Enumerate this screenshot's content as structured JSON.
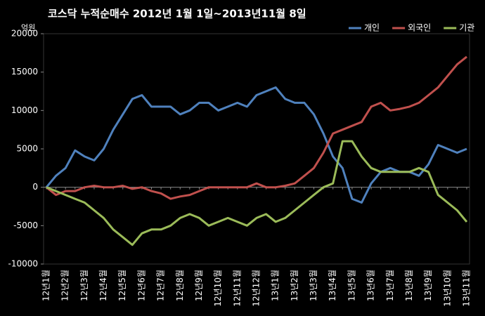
{
  "chart_data": {
    "type": "line",
    "title": "코스닥 누적순매수 2012년 1월 1일~2013년11월 8일",
    "y_label": "억원",
    "categories": [
      "12년1월",
      null,
      "12년2월",
      null,
      "12년3월",
      null,
      "12년4월",
      null,
      "12년5월",
      null,
      "12년6월",
      null,
      "12년7월",
      null,
      "12년8월",
      null,
      "12년9월",
      null,
      "12년10월",
      null,
      "12년11월",
      null,
      "12년12월",
      null,
      "13년1월",
      null,
      "13년2월",
      null,
      "13년3월",
      null,
      "13년4월",
      null,
      "13년5월",
      null,
      "13년6월",
      null,
      "13년7월",
      null,
      "13년8월",
      null,
      "13년9월",
      null,
      "13년10월",
      null,
      "13년11월"
    ],
    "series": [
      {
        "name": "개인",
        "color": "#4f81bd",
        "values": [
          0,
          1500,
          2500,
          4800,
          4000,
          3500,
          5000,
          7500,
          9500,
          11500,
          12000,
          10500,
          10500,
          10500,
          9500,
          10000,
          11000,
          11000,
          10000,
          10500,
          11000,
          10500,
          12000,
          12500,
          13000,
          11500,
          11000,
          11000,
          9500,
          7000,
          4000,
          2500,
          -1500,
          -2000,
          500,
          2000,
          2500,
          2000,
          2000,
          1500,
          3000,
          5500,
          5000,
          4500,
          5000
        ]
      },
      {
        "name": "외국인",
        "color": "#c0504d",
        "values": [
          0,
          -1000,
          -500,
          -500,
          0,
          200,
          0,
          0,
          200,
          -200,
          0,
          -500,
          -800,
          -1500,
          -1200,
          -1000,
          -500,
          0,
          0,
          0,
          0,
          0,
          500,
          0,
          0,
          200,
          500,
          1500,
          2500,
          4500,
          7000,
          7500,
          8000,
          8500,
          10500,
          11000,
          10000,
          10200,
          10500,
          11000,
          12000,
          13000,
          14500,
          16000,
          17000
        ]
      },
      {
        "name": "기관",
        "color": "#9bbb59",
        "values": [
          0,
          -500,
          -1000,
          -1500,
          -2000,
          -3000,
          -4000,
          -5500,
          -6500,
          -7500,
          -6000,
          -5500,
          -5500,
          -5000,
          -4000,
          -3500,
          -4000,
          -5000,
          -4500,
          -4000,
          -4500,
          -5000,
          -4000,
          -3500,
          -4500,
          -4000,
          -3000,
          -2000,
          -1000,
          0,
          500,
          6000,
          6000,
          4000,
          2500,
          2000,
          2000,
          2000,
          2000,
          2500,
          2000,
          -1000,
          -2000,
          -3000,
          -4500
        ]
      }
    ],
    "ylim": [
      -10000,
      20000
    ],
    "yticks": [
      -10000,
      -5000,
      0,
      5000,
      10000,
      15000,
      20000
    ],
    "grid": false,
    "legend": "top-right"
  }
}
